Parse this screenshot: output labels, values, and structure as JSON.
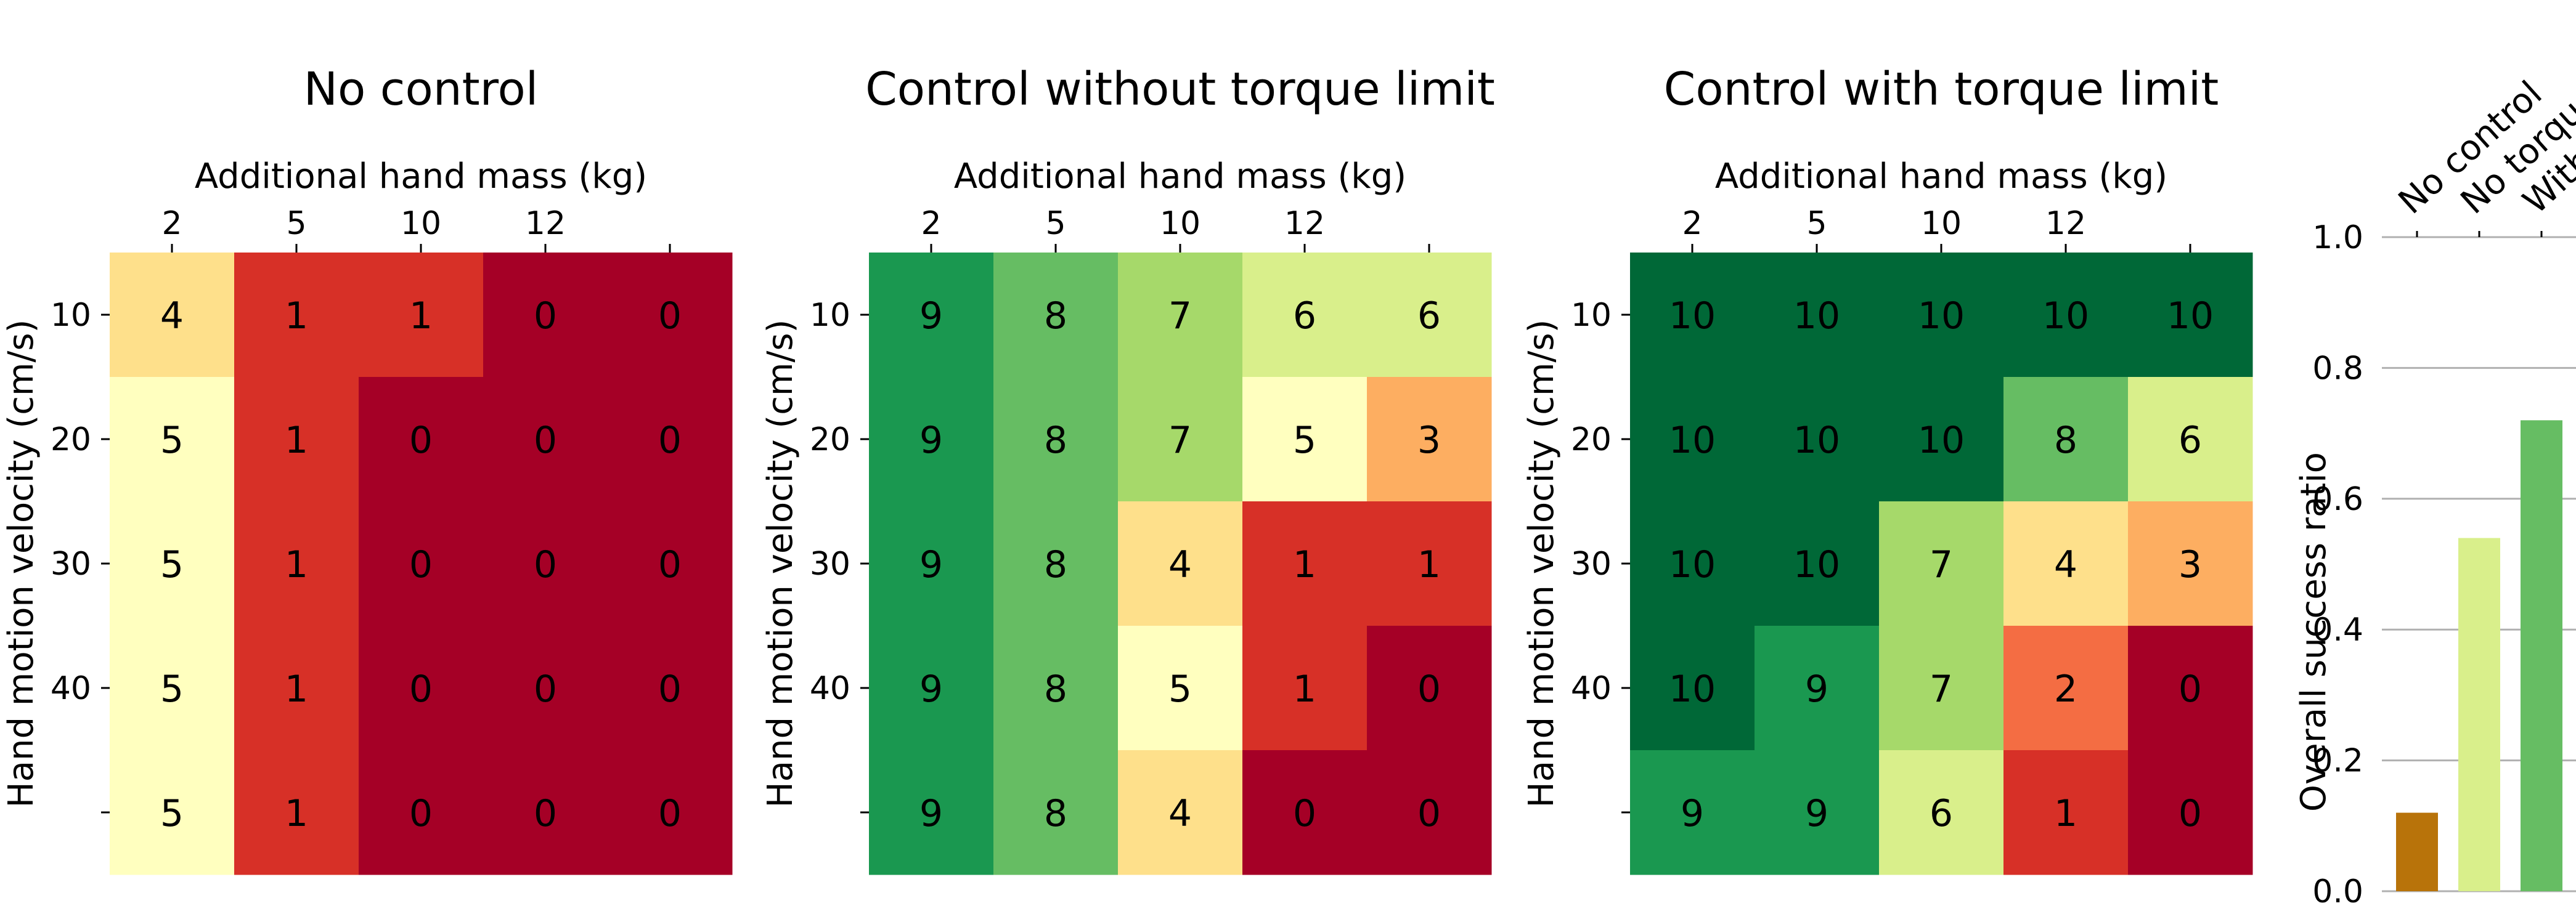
{
  "chart_data": [
    {
      "type": "heatmap",
      "title": "No control",
      "xlabel": "Additional hand mass (kg)",
      "ylabel": "Hand motion velocity (cm/s)",
      "x_tick_labels": [
        "2",
        "5",
        "10",
        "12",
        ""
      ],
      "y_tick_labels": [
        "10",
        "20",
        "30",
        "40",
        ""
      ],
      "values": [
        [
          4,
          1,
          1,
          0,
          0
        ],
        [
          5,
          1,
          0,
          0,
          0
        ],
        [
          5,
          1,
          0,
          0,
          0
        ],
        [
          5,
          1,
          0,
          0,
          0
        ],
        [
          5,
          1,
          0,
          0,
          0
        ]
      ],
      "colormap": "RdYlGn",
      "vmin": 0,
      "vmax": 10
    },
    {
      "type": "heatmap",
      "title": "Control without torque limit",
      "xlabel": "Additional hand mass (kg)",
      "ylabel": "Hand motion velocity (cm/s)",
      "x_tick_labels": [
        "2",
        "5",
        "10",
        "12",
        ""
      ],
      "y_tick_labels": [
        "10",
        "20",
        "30",
        "40",
        ""
      ],
      "values": [
        [
          9,
          8,
          7,
          6,
          6
        ],
        [
          9,
          8,
          7,
          5,
          3
        ],
        [
          9,
          8,
          4,
          1,
          1
        ],
        [
          9,
          8,
          5,
          1,
          0
        ],
        [
          9,
          8,
          4,
          0,
          0
        ]
      ],
      "colormap": "RdYlGn",
      "vmin": 0,
      "vmax": 10
    },
    {
      "type": "heatmap",
      "title": "Control with torque limit",
      "xlabel": "Additional hand mass (kg)",
      "ylabel": "Hand motion velocity (cm/s)",
      "x_tick_labels": [
        "2",
        "5",
        "10",
        "12",
        ""
      ],
      "y_tick_labels": [
        "10",
        "20",
        "30",
        "40",
        ""
      ],
      "values": [
        [
          10,
          10,
          10,
          10,
          10
        ],
        [
          10,
          10,
          10,
          8,
          6
        ],
        [
          10,
          10,
          7,
          4,
          3
        ],
        [
          10,
          9,
          7,
          2,
          0
        ],
        [
          9,
          9,
          6,
          1,
          0
        ]
      ],
      "colormap": "RdYlGn",
      "vmin": 0,
      "vmax": 10
    },
    {
      "type": "bar",
      "title": "",
      "ylabel": "Overall success ratio",
      "categories": [
        "No control",
        "No torque limit",
        "With torque limit"
      ],
      "values": [
        0.12,
        0.54,
        0.72
      ],
      "colors": [
        "#b8730a",
        "#d9ef8b",
        "#66bd63"
      ],
      "ylim": [
        0,
        1.0
      ],
      "y_ticks": [
        "0.0",
        "0.2",
        "0.4",
        "0.6",
        "0.8",
        "1.0"
      ],
      "grid": true
    }
  ]
}
